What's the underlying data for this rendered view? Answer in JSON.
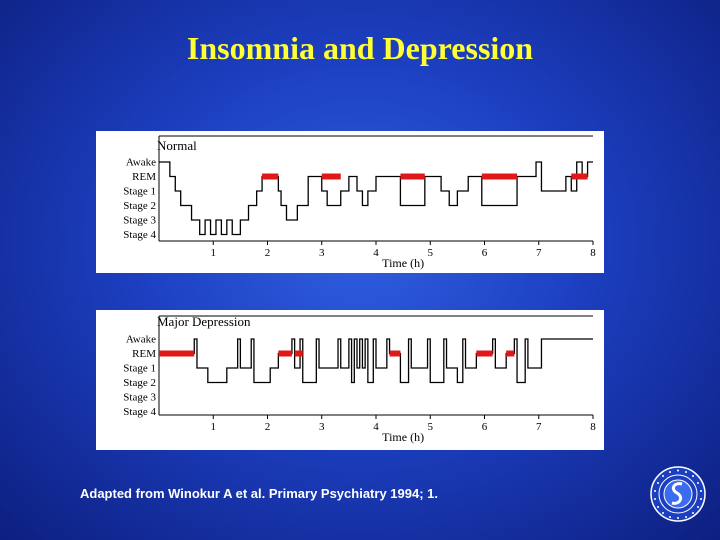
{
  "slide": {
    "title": "Insomnia and Depression",
    "footnote": "Adapted from Winokur A et al.  Primary Psychiatry 1994; 1."
  },
  "colors": {
    "rem": "#e01818",
    "trace": "#000000",
    "title": "#ffff33"
  },
  "chart_data": [
    {
      "type": "line",
      "title": "Normal",
      "xlabel": "Time (h)",
      "ylabel": "",
      "xlim": [
        0,
        8
      ],
      "x_ticks": [
        1,
        2,
        3,
        4,
        5,
        6,
        7,
        8
      ],
      "stages": [
        "Awake",
        "REM",
        "Stage 1",
        "Stage 2",
        "Stage 3",
        "Stage 4"
      ],
      "series": [
        {
          "values": [
            [
              0,
              0
            ],
            [
              0.2,
              1
            ],
            [
              0.3,
              2
            ],
            [
              0.4,
              3
            ],
            [
              0.6,
              4
            ],
            [
              0.75,
              5
            ],
            [
              0.85,
              4
            ],
            [
              0.95,
              5
            ],
            [
              1.05,
              4
            ],
            [
              1.15,
              5
            ],
            [
              1.25,
              4
            ],
            [
              1.35,
              5
            ],
            [
              1.5,
              4
            ],
            [
              1.65,
              3
            ],
            [
              1.8,
              2
            ],
            [
              1.9,
              1
            ],
            [
              2.2,
              2
            ],
            [
              2.25,
              3
            ],
            [
              2.35,
              4
            ],
            [
              2.55,
              3
            ],
            [
              2.75,
              1
            ],
            [
              3.0,
              2
            ],
            [
              3.1,
              3
            ],
            [
              3.35,
              2
            ],
            [
              3.5,
              1
            ],
            [
              3.65,
              2
            ],
            [
              3.75,
              3
            ],
            [
              3.85,
              2
            ],
            [
              4.0,
              1
            ],
            [
              4.45,
              3
            ],
            [
              4.9,
              1
            ],
            [
              5.2,
              2
            ],
            [
              5.35,
              3
            ],
            [
              5.5,
              2
            ],
            [
              5.7,
              1
            ],
            [
              5.95,
              3
            ],
            [
              6.6,
              1
            ],
            [
              6.95,
              0
            ],
            [
              7.05,
              2
            ],
            [
              7.5,
              1
            ],
            [
              7.6,
              2
            ],
            [
              7.7,
              0
            ],
            [
              7.8,
              1
            ],
            [
              7.9,
              0
            ],
            [
              8,
              0
            ]
          ]
        }
      ],
      "rem_periods": [
        [
          1.9,
          2.2
        ],
        [
          3.0,
          3.35
        ],
        [
          4.45,
          4.9
        ],
        [
          5.95,
          6.6
        ],
        [
          7.6,
          7.9
        ]
      ]
    },
    {
      "type": "line",
      "title": "Major Depression",
      "xlabel": "Time (h)",
      "ylabel": "",
      "xlim": [
        0,
        8
      ],
      "x_ticks": [
        1,
        2,
        3,
        4,
        5,
        6,
        7,
        8
      ],
      "stages": [
        "Awake",
        "REM",
        "Stage 1",
        "Stage 2",
        "Stage 3",
        "Stage 4"
      ],
      "series": [
        {
          "values": [
            [
              0,
              1
            ],
            [
              0.65,
              0
            ],
            [
              0.7,
              2
            ],
            [
              0.9,
              3
            ],
            [
              1.25,
              2
            ],
            [
              1.45,
              0
            ],
            [
              1.5,
              2
            ],
            [
              1.7,
              0
            ],
            [
              1.75,
              3
            ],
            [
              2.05,
              2
            ],
            [
              2.2,
              1
            ],
            [
              2.45,
              0
            ],
            [
              2.5,
              2
            ],
            [
              2.6,
              0
            ],
            [
              2.65,
              3
            ],
            [
              2.9,
              0
            ],
            [
              2.95,
              2
            ],
            [
              3.3,
              0
            ],
            [
              3.35,
              2
            ],
            [
              3.5,
              0
            ],
            [
              3.55,
              3
            ],
            [
              3.6,
              0
            ],
            [
              3.65,
              2
            ],
            [
              3.7,
              0
            ],
            [
              3.75,
              2
            ],
            [
              3.8,
              0
            ],
            [
              3.85,
              3
            ],
            [
              3.95,
              0
            ],
            [
              4.0,
              2
            ],
            [
              4.2,
              0
            ],
            [
              4.25,
              1
            ],
            [
              4.45,
              3
            ],
            [
              4.6,
              0
            ],
            [
              4.65,
              2
            ],
            [
              4.95,
              0
            ],
            [
              5.0,
              3
            ],
            [
              5.25,
              0
            ],
            [
              5.3,
              2
            ],
            [
              5.5,
              3
            ],
            [
              5.6,
              0
            ],
            [
              5.65,
              2
            ],
            [
              5.85,
              1
            ],
            [
              6.15,
              0
            ],
            [
              6.2,
              2
            ],
            [
              6.4,
              1
            ],
            [
              6.55,
              0
            ],
            [
              6.6,
              3
            ],
            [
              6.75,
              0
            ],
            [
              6.8,
              2
            ],
            [
              7.05,
              0
            ],
            [
              8,
              0
            ]
          ]
        }
      ],
      "rem_periods": [
        [
          0.0,
          0.65
        ],
        [
          2.2,
          2.45
        ],
        [
          2.5,
          2.65
        ],
        [
          4.25,
          4.45
        ],
        [
          5.85,
          6.15
        ],
        [
          6.4,
          6.55
        ]
      ]
    }
  ]
}
